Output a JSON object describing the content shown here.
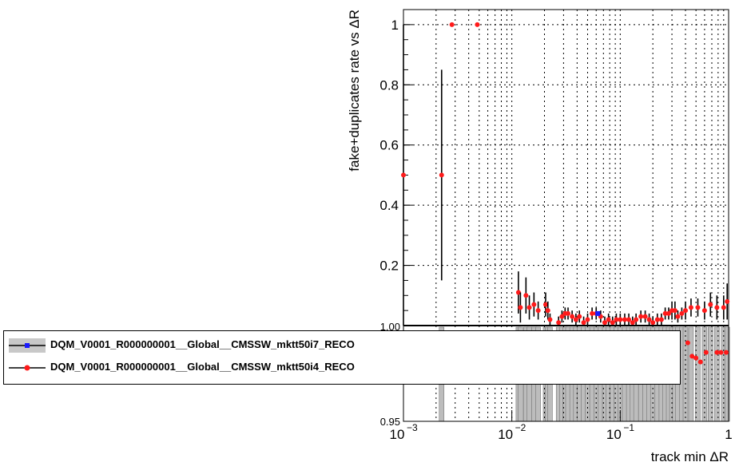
{
  "chart_data": [
    {
      "type": "scatter",
      "title": "",
      "xlabel": "track min ΔR",
      "ylabel": "fake+duplicates rate vs ΔR",
      "xscale": "log",
      "xlim": [
        0.001,
        1
      ],
      "ylim": [
        0,
        1.05
      ],
      "grid": true,
      "xtick_labels": [
        "10",
        "10",
        "10",
        "1"
      ],
      "xtick_exponents": [
        "−3",
        "−2",
        "−1",
        ""
      ],
      "ytick_labels": [
        "0.2",
        "0.4",
        "0.6",
        "0.8",
        "1"
      ],
      "yticks": [
        0.2,
        0.4,
        0.6,
        0.8,
        1.0
      ],
      "series": [
        {
          "name": "DQM_V0001_R000000001__Global__CMSSW_mktt50i7_RECO",
          "color": "#1a1aff",
          "marker": "square",
          "points": [
            [
              0.062,
              0.04
            ]
          ]
        },
        {
          "name": "DQM_V0001_R000000001__Global__CMSSW_mktt50i4_RECO",
          "color": "#ff1a1a",
          "marker": "circle",
          "points": [
            [
              0.001,
              0.5,
              0.5
            ],
            [
              0.00225,
              0.5,
              0.35
            ],
            [
              0.0028,
              1.0,
              0.0
            ],
            [
              0.0048,
              1.0,
              0.0
            ],
            [
              0.0115,
              0.11,
              0.07
            ],
            [
              0.012,
              0.06,
              0.05
            ],
            [
              0.0135,
              0.1,
              0.06
            ],
            [
              0.0145,
              0.06,
              0.04
            ],
            [
              0.016,
              0.07,
              0.04
            ],
            [
              0.0175,
              0.05,
              0.03
            ],
            [
              0.0205,
              0.07,
              0.04
            ],
            [
              0.0215,
              0.05,
              0.03
            ],
            [
              0.0225,
              0.02,
              0.02
            ],
            [
              0.027,
              0.01,
              0.02
            ],
            [
              0.029,
              0.03,
              0.02
            ],
            [
              0.031,
              0.04,
              0.02
            ],
            [
              0.033,
              0.04,
              0.02
            ],
            [
              0.036,
              0.03,
              0.02
            ],
            [
              0.039,
              0.02,
              0.02
            ],
            [
              0.042,
              0.03,
              0.02
            ],
            [
              0.046,
              0.01,
              0.02
            ],
            [
              0.05,
              0.02,
              0.02
            ],
            [
              0.055,
              0.04,
              0.02
            ],
            [
              0.06,
              0.04,
              0.02
            ],
            [
              0.066,
              0.03,
              0.02
            ],
            [
              0.072,
              0.01,
              0.02
            ],
            [
              0.078,
              0.02,
              0.02
            ],
            [
              0.085,
              0.01,
              0.02
            ],
            [
              0.092,
              0.02,
              0.02
            ],
            [
              0.1,
              0.02,
              0.02
            ],
            [
              0.11,
              0.02,
              0.02
            ],
            [
              0.12,
              0.02,
              0.02
            ],
            [
              0.13,
              0.01,
              0.02
            ],
            [
              0.14,
              0.02,
              0.02
            ],
            [
              0.155,
              0.03,
              0.02
            ],
            [
              0.17,
              0.03,
              0.02
            ],
            [
              0.185,
              0.02,
              0.02
            ],
            [
              0.2,
              0.01,
              0.02
            ],
            [
              0.22,
              0.02,
              0.02
            ],
            [
              0.24,
              0.02,
              0.02
            ],
            [
              0.26,
              0.04,
              0.02
            ],
            [
              0.28,
              0.04,
              0.02
            ],
            [
              0.3,
              0.05,
              0.03
            ],
            [
              0.32,
              0.05,
              0.03
            ],
            [
              0.34,
              0.03,
              0.02
            ],
            [
              0.37,
              0.04,
              0.02
            ],
            [
              0.4,
              0.05,
              0.03
            ],
            [
              0.45,
              0.06,
              0.03
            ],
            [
              0.52,
              0.06,
              0.03
            ],
            [
              0.6,
              0.05,
              0.03
            ],
            [
              0.68,
              0.07,
              0.04
            ],
            [
              0.78,
              0.06,
              0.04
            ],
            [
              0.9,
              0.06,
              0.04
            ],
            [
              0.97,
              0.08,
              0.06
            ]
          ]
        }
      ]
    },
    {
      "type": "scatter",
      "title": "",
      "xlabel": "",
      "ylabel": "",
      "xscale": "log",
      "xlim": [
        0.001,
        1
      ],
      "ylim": [
        0.95,
        1.0
      ],
      "ytick_labels": [
        "0.95",
        "1.00"
      ],
      "series": [
        {
          "name": "ratio",
          "color": "#ff1a1a",
          "marker": "circle",
          "points": [
            [
              0.065,
              0.984
            ],
            [
              0.072,
              0.984
            ],
            [
              0.093,
              0.984
            ],
            [
              0.19,
              0.982
            ],
            [
              0.42,
              0.991
            ],
            [
              0.46,
              0.984
            ],
            [
              0.5,
              0.983
            ],
            [
              0.55,
              0.981
            ],
            [
              0.62,
              0.986
            ],
            [
              0.78,
              0.986
            ],
            [
              0.85,
              0.986
            ],
            [
              0.95,
              0.986
            ]
          ]
        }
      ]
    }
  ],
  "legend": {
    "entries": [
      {
        "label": "DQM_V0001_R000000001__Global__CMSSW_mktt50i7_RECO",
        "color": "#1a1aff",
        "marker": "square"
      },
      {
        "label": "DQM_V0001_R000000001__Global__CMSSW_mktt50i4_RECO",
        "color": "#ff1a1a",
        "marker": "circle"
      }
    ]
  },
  "colors": {
    "series_blue": "#1a1aff",
    "series_red": "#ff1a1a",
    "band_fill": "#bdbdbd"
  }
}
